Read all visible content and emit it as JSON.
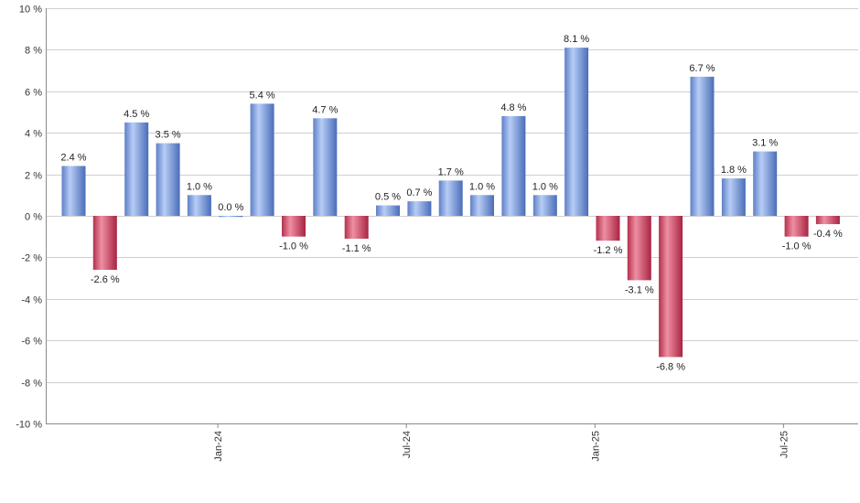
{
  "chart_data": {
    "type": "bar",
    "title": "",
    "xlabel": "",
    "ylabel": "",
    "ylim": [
      -10,
      10
    ],
    "yticks": [
      10,
      8,
      6,
      4,
      2,
      0,
      -2,
      -4,
      -6,
      -8,
      -10
    ],
    "ytick_labels": [
      "10 %",
      "8 %",
      "6 %",
      "4 %",
      "2 %",
      "0 %",
      "-2 %",
      "-4 %",
      "-6 %",
      "-8 %",
      "-10 %"
    ],
    "grid": true,
    "legend": "none",
    "x_tick_labels": [
      {
        "label": "Jan-24",
        "after_index": 4
      },
      {
        "label": "Jul-24",
        "after_index": 10
      },
      {
        "label": "Jan-25",
        "after_index": 16
      },
      {
        "label": "Jul-25",
        "after_index": 22
      }
    ],
    "values": [
      2.4,
      -2.6,
      4.5,
      3.5,
      1.0,
      0.0,
      5.4,
      -1.0,
      4.7,
      -1.1,
      0.5,
      0.7,
      1.7,
      1.0,
      4.8,
      1.0,
      8.1,
      -1.2,
      -3.1,
      -6.8,
      6.7,
      1.8,
      3.1,
      -1.0,
      -0.4
    ],
    "labels": [
      "2.4 %",
      "-2.6 %",
      "4.5 %",
      "3.5 %",
      "1.0 %",
      "0.0 %",
      "5.4 %",
      "-1.0 %",
      "4.7 %",
      "-1.1 %",
      "0.5 %",
      "0.7 %",
      "1.7 %",
      "1.0 %",
      "4.8 %",
      "1.0 %",
      "8.1 %",
      "-1.2 %",
      "-3.1 %",
      "-6.8 %",
      "6.7 %",
      "1.8 %",
      "3.1 %",
      "-1.0 %",
      "-0.4 %"
    ],
    "colors": {
      "positive": "#6f93d8",
      "negative": "#c83c5a"
    }
  }
}
